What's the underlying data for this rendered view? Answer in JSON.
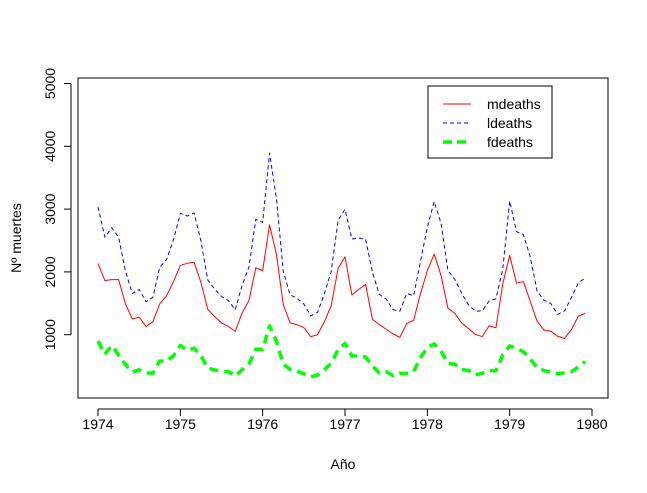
{
  "chart_data": {
    "type": "line",
    "title": "",
    "xlabel": "Año",
    "ylabel": "Nº muertes",
    "xlim": [
      1974,
      1980
    ],
    "ylim": [
      0,
      5000
    ],
    "x_ticks": [
      "1974",
      "1975",
      "1976",
      "1977",
      "1978",
      "1979",
      "1980"
    ],
    "y_ticks": [
      "1000",
      "2000",
      "3000",
      "4000",
      "5000"
    ],
    "legend_position": "top-right",
    "grid": false,
    "x_start": 1974,
    "x_step": 0.08333,
    "series": [
      {
        "name": "mdeaths",
        "color": "#ff0000",
        "style": "solid",
        "values": [
          2134,
          1863,
          1877,
          1877,
          1492,
          1249,
          1280,
          1131,
          1209,
          1492,
          1621,
          1846,
          2103,
          2137,
          2153,
          1833,
          1403,
          1288,
          1186,
          1133,
          1053,
          1347,
          1545,
          2066,
          2020,
          2750,
          2283,
          1479,
          1189,
          1160,
          1113,
          970,
          999,
          1208,
          1467,
          2059,
          2240,
          1634,
          1722,
          1801,
          1246,
          1162,
          1087,
          1013,
          959,
          1179,
          1229,
          1655,
          2019,
          2284,
          1942,
          1423,
          1340,
          1187,
          1098,
          1004,
          970,
          1140,
          1110,
          1812,
          2263,
          1820,
          1846,
          1531,
          1215,
          1075,
          1056,
          975,
          940,
          1081,
          1294,
          1341
        ]
      },
      {
        "name": "ldeaths",
        "color": "#0000ff",
        "style": "dashed",
        "values": [
          3035,
          2552,
          2704,
          2554,
          2014,
          1655,
          1721,
          1524,
          1596,
          2074,
          2199,
          2512,
          2933,
          2889,
          2938,
          2497,
          1870,
          1726,
          1607,
          1545,
          1396,
          1787,
          2076,
          2837,
          2787,
          3891,
          3179,
          2011,
          1636,
          1580,
          1489,
          1300,
          1356,
          1653,
          2013,
          2823,
          2996,
          2523,
          2540,
          2520,
          1994,
          1641,
          1569,
          1399,
          1375,
          1658,
          1620,
          2163,
          2711,
          3122,
          2773,
          2023,
          1881,
          1661,
          1476,
          1375,
          1380,
          1537,
          1573,
          2046,
          3129,
          2641,
          2596,
          2240,
          1697,
          1548,
          1497,
          1324,
          1379,
          1592,
          1822,
          1904
        ]
      },
      {
        "name": "fdeaths",
        "color": "#00ff00",
        "style": "thick-dashed",
        "values": [
          901,
          689,
          827,
          677,
          522,
          406,
          441,
          393,
          387,
          582,
          578,
          666,
          830,
          752,
          785,
          664,
          467,
          438,
          421,
          412,
          343,
          440,
          531,
          771,
          767,
          1141,
          896,
          532,
          447,
          420,
          376,
          330,
          357,
          445,
          546,
          764,
          862,
          660,
          663,
          643,
          502,
          392,
          411,
          348,
          387,
          385,
          411,
          638,
          796,
          853,
          737,
          546,
          530,
          446,
          431,
          362,
          387,
          430,
          425,
          679,
          821,
          785,
          727,
          612,
          478,
          429,
          405,
          379,
          393,
          411,
          487,
          574
        ]
      }
    ]
  }
}
